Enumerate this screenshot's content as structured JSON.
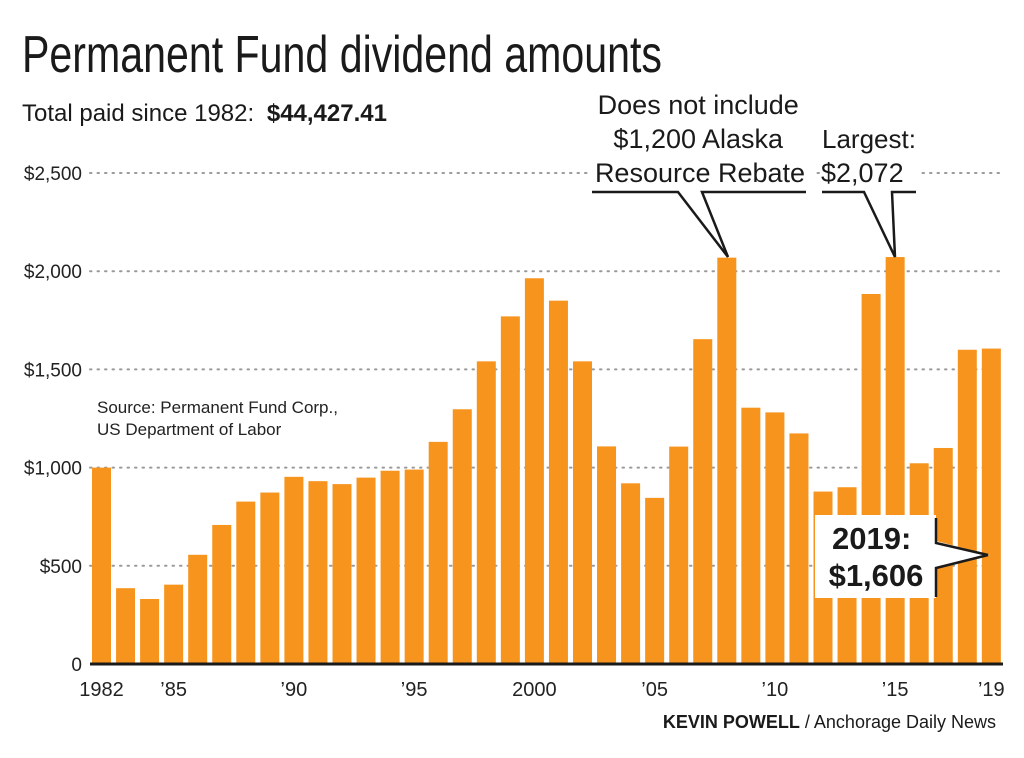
{
  "chart_data": {
    "type": "bar",
    "title": "Permanent Fund dividend amounts",
    "subtitle_label": "Total paid since 1982:",
    "subtitle_value": "$44,427.41",
    "xlabel": "",
    "ylabel": "",
    "ylim": [
      0,
      2500
    ],
    "yticks": [
      0,
      500,
      1000,
      1500,
      2000,
      2500
    ],
    "ytick_labels": [
      "0",
      "$500",
      "$1,000",
      "$1,500",
      "$2,000",
      "$2,500"
    ],
    "grid": true,
    "bar_color": "#f7941d",
    "categories": [
      1982,
      1983,
      1984,
      1985,
      1986,
      1987,
      1988,
      1989,
      1990,
      1991,
      1992,
      1993,
      1994,
      1995,
      1996,
      1997,
      1998,
      1999,
      2000,
      2001,
      2002,
      2003,
      2004,
      2005,
      2006,
      2007,
      2008,
      2009,
      2010,
      2011,
      2012,
      2013,
      2014,
      2015,
      2016,
      2017,
      2018,
      2019
    ],
    "values": [
      1000,
      386,
      331,
      404,
      556,
      708,
      827,
      873,
      953,
      931,
      916,
      949,
      984,
      990,
      1131,
      1297,
      1541,
      1770,
      1964,
      1850,
      1541,
      1108,
      920,
      846,
      1107,
      1654,
      2069,
      1305,
      1281,
      1174,
      878,
      900,
      1884,
      2072,
      1022,
      1100,
      1600,
      1606
    ],
    "xtick_labels": [
      {
        "year": 1982,
        "label": "1982"
      },
      {
        "year": 1985,
        "label": "’85"
      },
      {
        "year": 1990,
        "label": "’90"
      },
      {
        "year": 1995,
        "label": "’95"
      },
      {
        "year": 2000,
        "label": "2000"
      },
      {
        "year": 2005,
        "label": "’05"
      },
      {
        "year": 2010,
        "label": "’10"
      },
      {
        "year": 2015,
        "label": "’15"
      },
      {
        "year": 2019,
        "label": "’19"
      }
    ],
    "annotations": {
      "rebate": {
        "year": 2008,
        "lines": [
          "Does not include",
          "$1,200 Alaska",
          "Resource Rebate"
        ]
      },
      "largest": {
        "year": 2015,
        "lines": [
          "Largest:",
          "$2,072"
        ]
      },
      "latest": {
        "year": 2019,
        "lines": [
          "2019:",
          "$1,606"
        ]
      }
    },
    "source": [
      "Source: Permanent Fund Corp.,",
      "US Department of Labor"
    ],
    "credit_author": "KEVIN POWELL",
    "credit_outlet": " / Anchorage Daily News"
  }
}
